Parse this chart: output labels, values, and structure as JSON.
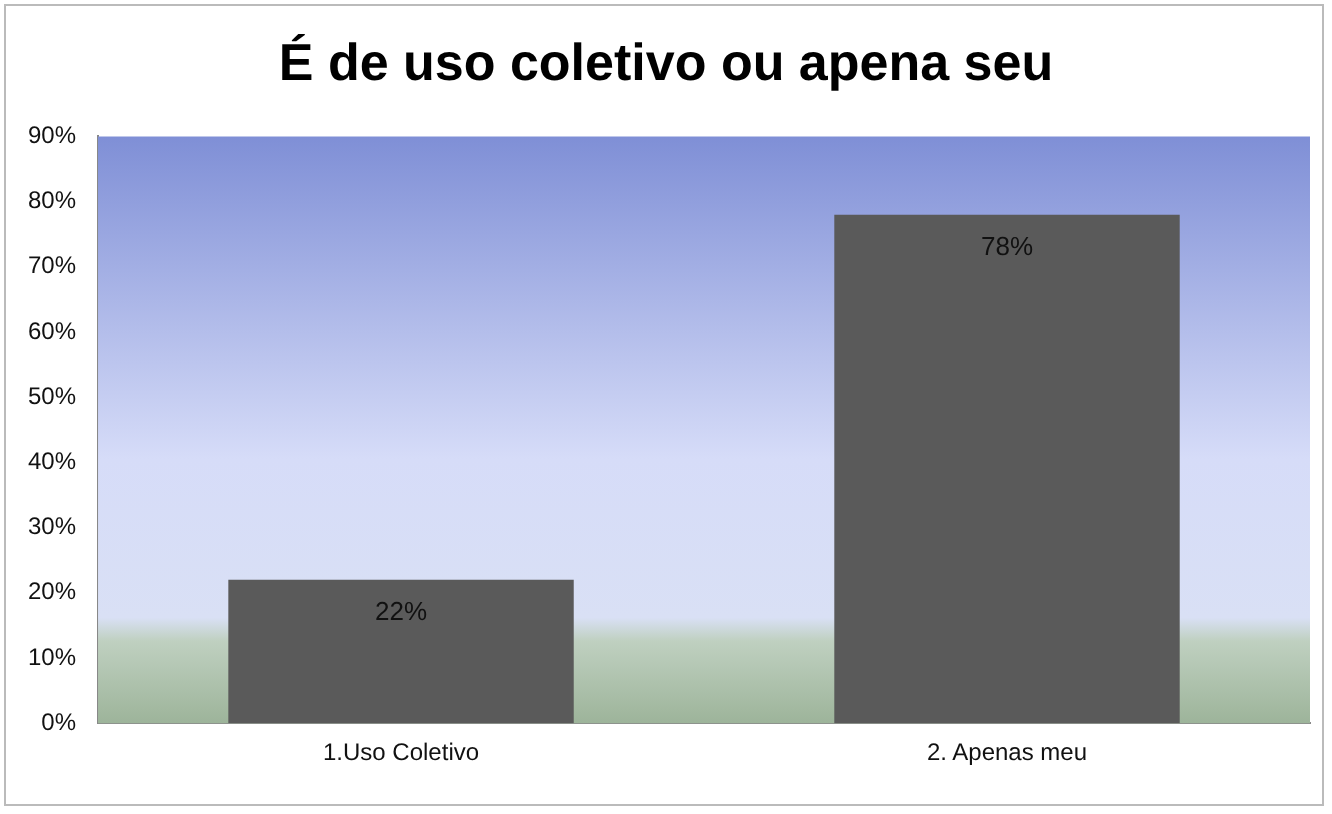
{
  "chart_data": {
    "type": "bar",
    "title": "É de uso coletivo ou apena seu",
    "categories": [
      "1.Uso Coletivo",
      "2. Apenas meu"
    ],
    "values": [
      22,
      78
    ],
    "color": "#5a5a5a",
    "value_labels": [
      "22%",
      "78%"
    ],
    "ylim": [
      0,
      90
    ],
    "yticks": [
      {
        "value": 0,
        "label": "0%"
      },
      {
        "value": 10,
        "label": "10%"
      },
      {
        "value": 20,
        "label": "20%"
      },
      {
        "value": 30,
        "label": "30%"
      },
      {
        "value": 40,
        "label": "40%"
      },
      {
        "value": 50,
        "label": "50%"
      },
      {
        "value": 60,
        "label": "60%"
      },
      {
        "value": 70,
        "label": "70%"
      },
      {
        "value": 80,
        "label": "80%"
      },
      {
        "value": 90,
        "label": "90%"
      }
    ],
    "grid": false,
    "legend": false
  }
}
